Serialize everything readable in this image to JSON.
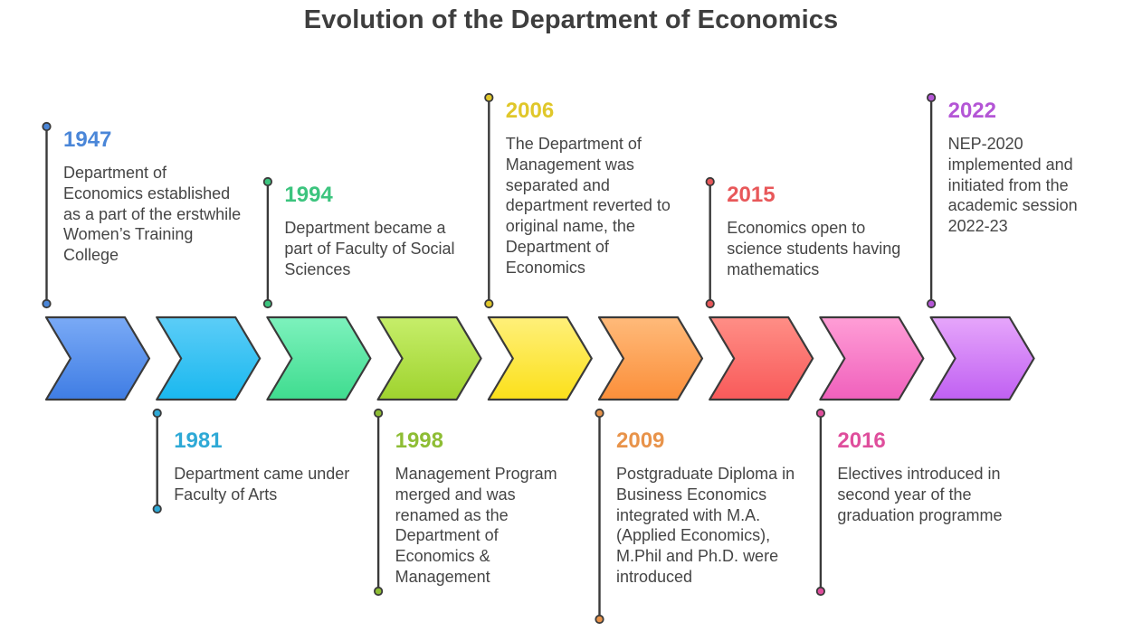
{
  "title": "Evolution of the Department of Economics",
  "events": [
    {
      "year": "1947",
      "description": "Department of Economics established as a part of the erstwhile Women’s Training College",
      "color": "#4a86d8",
      "gradient": [
        "#7aaaf6",
        "#3f7de4"
      ],
      "position": "top"
    },
    {
      "year": "1981",
      "description": "Department came under Faculty of Arts",
      "color": "#2ea9d6",
      "gradient": [
        "#5ccdf7",
        "#1ab8ef"
      ],
      "position": "bottom"
    },
    {
      "year": "1994",
      "description": "Department became a part of Faculty of Social Sciences",
      "color": "#3cc47e",
      "gradient": [
        "#7df2bd",
        "#3fdc8f"
      ],
      "position": "top"
    },
    {
      "year": "1998",
      "description": "Management Program merged and was renamed as the Department of Economics & Management",
      "color": "#8ebd34",
      "gradient": [
        "#c6ee6a",
        "#9fd32e"
      ],
      "position": "bottom"
    },
    {
      "year": "2006",
      "description": "The Department of Management was separated and department reverted to original name, the Department of Economics",
      "color": "#e0c72a",
      "gradient": [
        "#fff07a",
        "#fbe01a"
      ],
      "position": "top"
    },
    {
      "year": "2009",
      "description": "Postgraduate Diploma in Business Economics integrated with M.A. (Applied Economics), M.Phil and Ph.D. were introduced",
      "color": "#e8934a",
      "gradient": [
        "#ffba7a",
        "#fb8f3a"
      ],
      "position": "bottom"
    },
    {
      "year": "2015",
      "description": "Economics open to science students having mathematics",
      "color": "#e8585a",
      "gradient": [
        "#ff8e86",
        "#f85a5a"
      ],
      "position": "top"
    },
    {
      "year": "2016",
      "description": "Electives introduced in second year of the graduation programme",
      "color": "#df4e9c",
      "gradient": [
        "#ff9ed6",
        "#f060bc"
      ],
      "position": "bottom"
    },
    {
      "year": "2022",
      "description": "NEP-2020 implemented and initiated from the academic session 2022-23",
      "color": "#b456d6",
      "gradient": [
        "#e6a6fb",
        "#c060f2"
      ],
      "position": "top"
    }
  ]
}
